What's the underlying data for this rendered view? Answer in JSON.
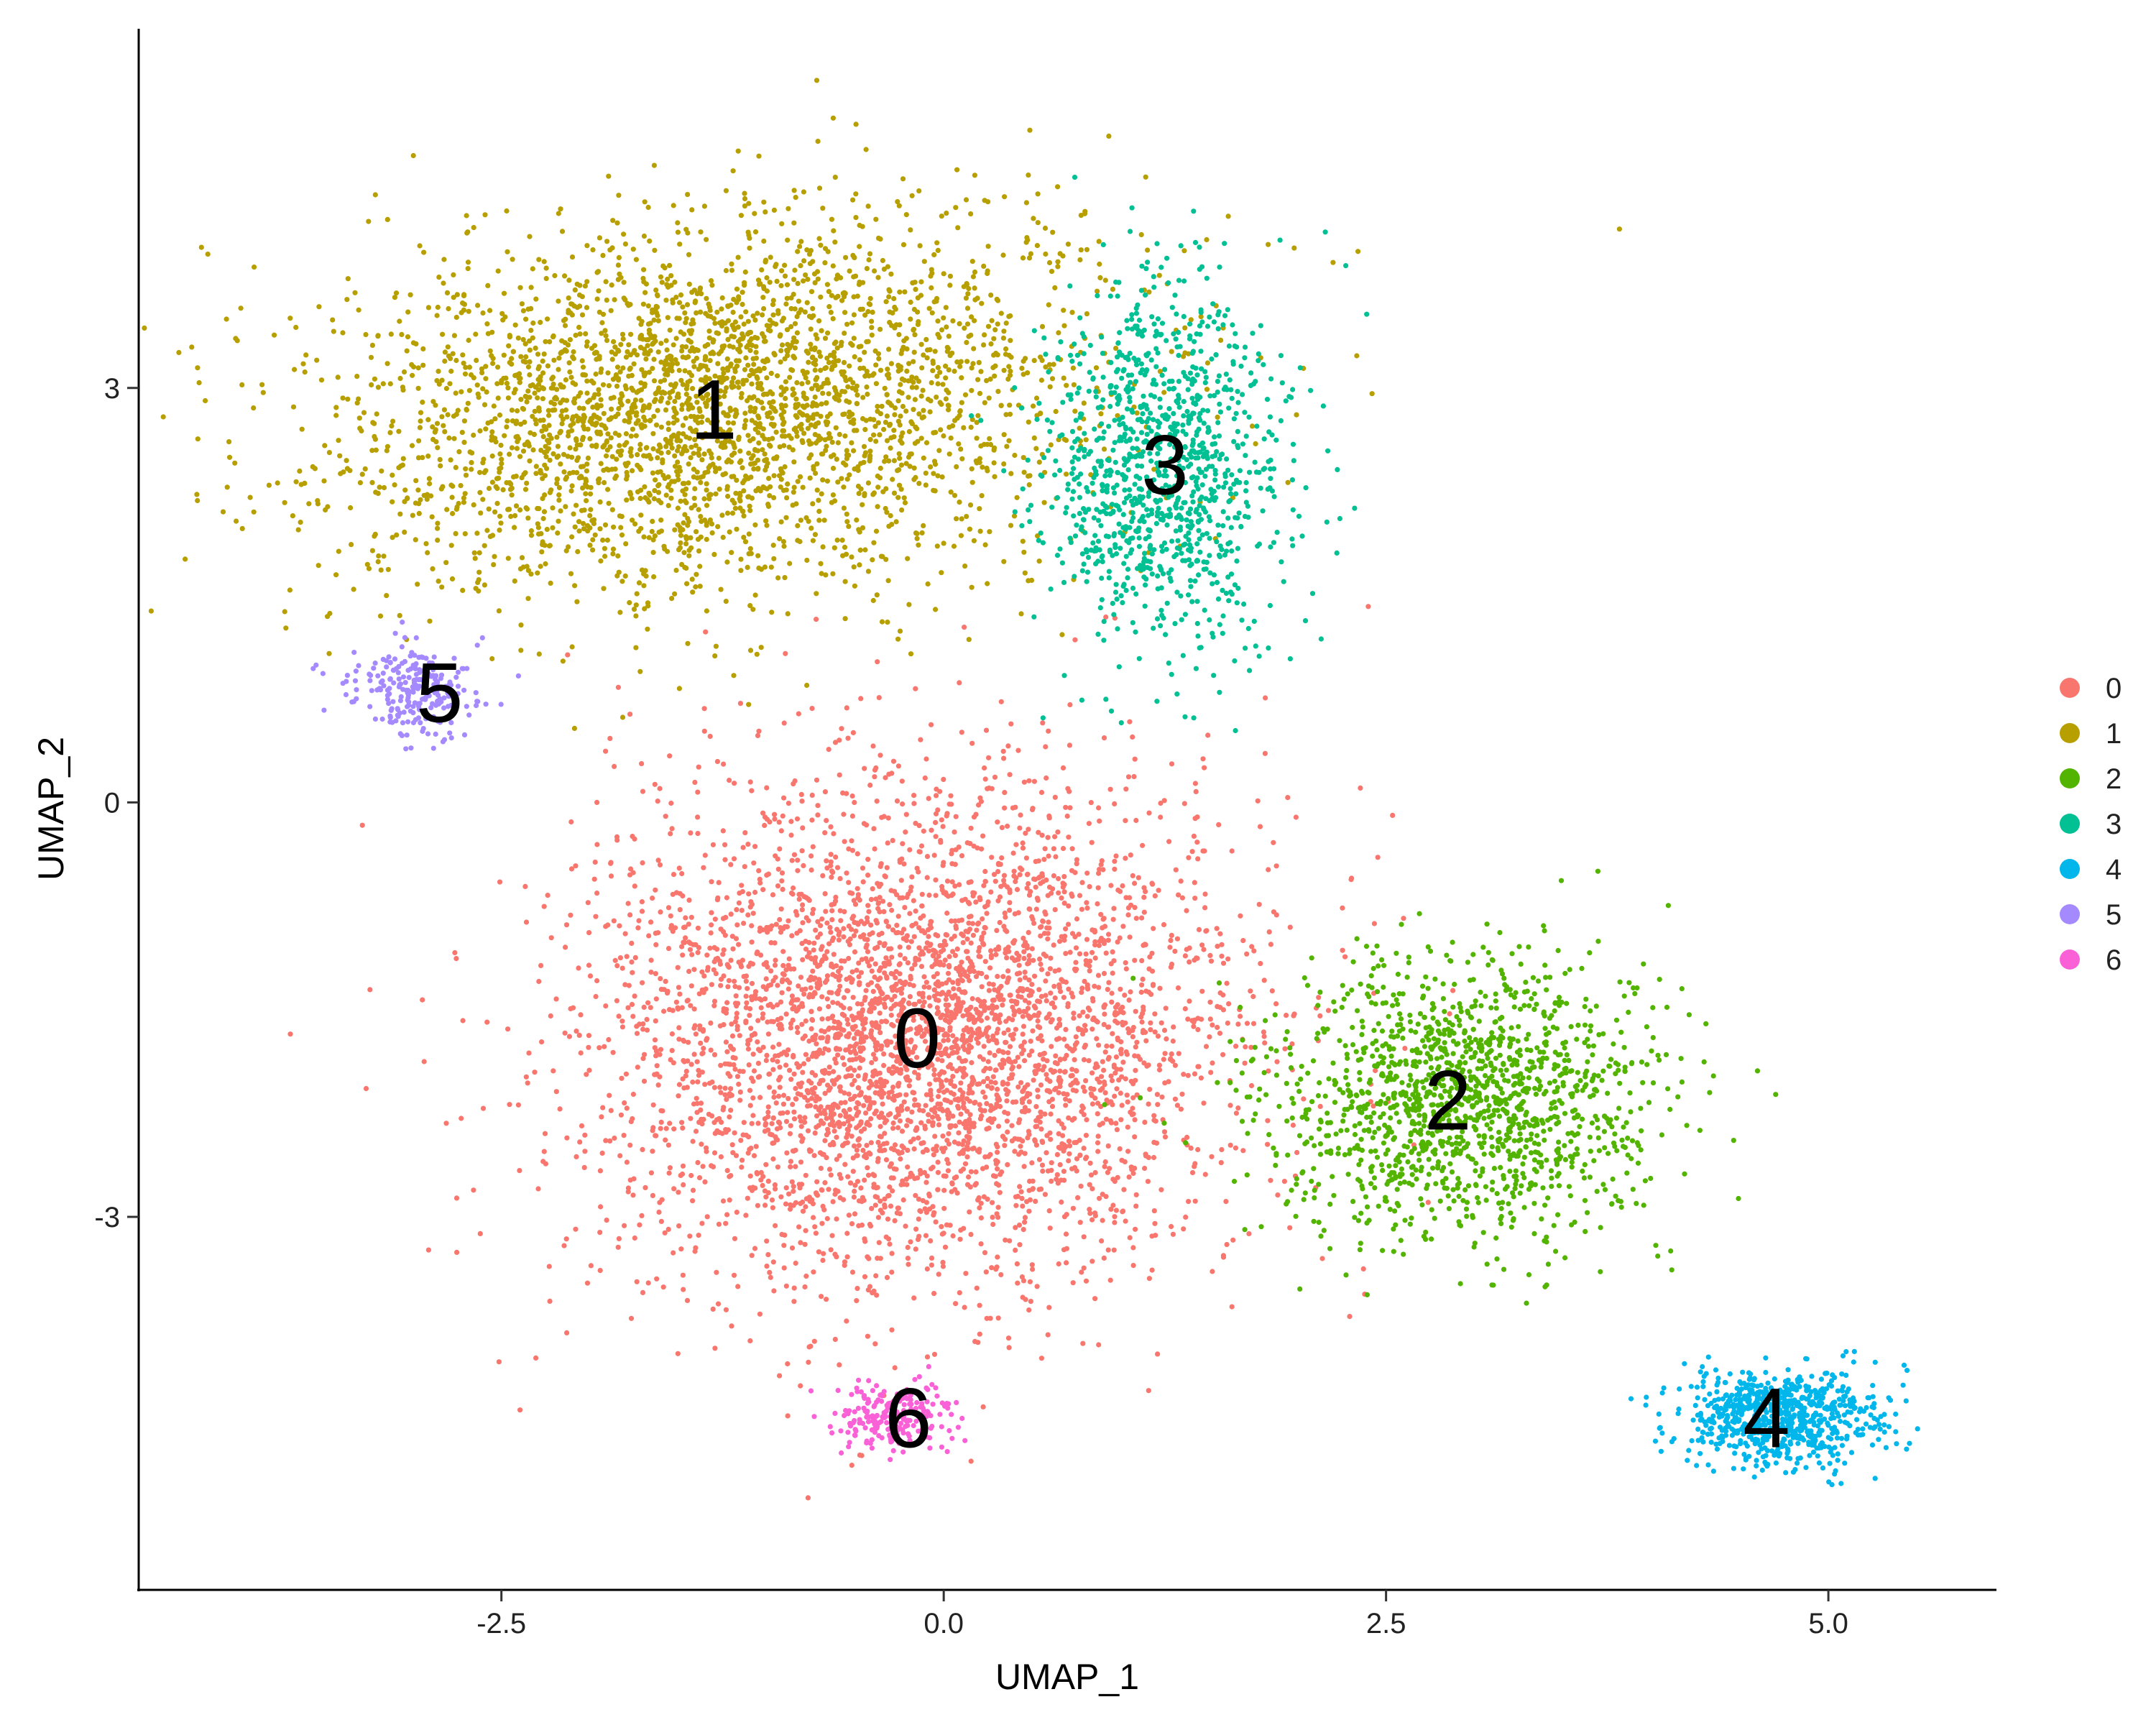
{
  "chart_data": {
    "type": "scatter",
    "title": "",
    "xlabel": "UMAP_1",
    "ylabel": "UMAP_2",
    "xlim": [
      -4.55,
      5.95
    ],
    "ylim": [
      -5.7,
      5.6
    ],
    "x_ticks": [
      {
        "value": -2.5,
        "label": "-2.5"
      },
      {
        "value": 0,
        "label": "0.0"
      },
      {
        "value": 2.5,
        "label": "2.5"
      },
      {
        "value": 5,
        "label": "5.0"
      }
    ],
    "y_ticks": [
      {
        "value": 3,
        "label": "3"
      },
      {
        "value": 0,
        "label": "0"
      },
      {
        "value": -3,
        "label": "-3"
      }
    ],
    "grid": false,
    "legend": {
      "placement": "right",
      "entries": [
        {
          "label": "0",
          "color": "#F8766D"
        },
        {
          "label": "1",
          "color": "#B79F00"
        },
        {
          "label": "2",
          "color": "#53B400"
        },
        {
          "label": "3",
          "color": "#00C094"
        },
        {
          "label": "4",
          "color": "#00B6EB"
        },
        {
          "label": "5",
          "color": "#A58AFF"
        },
        {
          "label": "6",
          "color": "#FB61D7"
        }
      ]
    },
    "clusters": [
      {
        "label": "0",
        "color": "#F8766D",
        "center": [
          -0.15,
          -1.7
        ],
        "spread": [
          1.45,
          1.45
        ],
        "angle": -40,
        "n": 4200
      },
      {
        "label": "1",
        "color": "#B79F00",
        "center": [
          -1.3,
          2.85
        ],
        "spread": [
          1.75,
          1.05
        ],
        "angle": 10,
        "n": 3200
      },
      {
        "label": "2",
        "color": "#53B400",
        "center": [
          2.95,
          -2.15
        ],
        "spread": [
          0.85,
          0.8
        ],
        "angle": 15,
        "n": 1500
      },
      {
        "label": "3",
        "color": "#00C094",
        "center": [
          1.25,
          2.45
        ],
        "spread": [
          0.55,
          1.05
        ],
        "angle": 0,
        "n": 1100
      },
      {
        "label": "4",
        "color": "#00B6EB",
        "center": [
          4.7,
          -4.45
        ],
        "spread": [
          0.45,
          0.28
        ],
        "angle": 0,
        "n": 750
      },
      {
        "label": "5",
        "color": "#A58AFF",
        "center": [
          -3.0,
          0.8
        ],
        "spread": [
          0.3,
          0.25
        ],
        "angle": 0,
        "n": 240
      },
      {
        "label": "6",
        "color": "#FB61D7",
        "center": [
          -0.3,
          -4.45
        ],
        "spread": [
          0.28,
          0.2
        ],
        "angle": 0,
        "n": 230
      }
    ],
    "cluster_labels": [
      {
        "text": "0",
        "x": -0.15,
        "y": -1.7
      },
      {
        "text": "1",
        "x": -1.3,
        "y": 2.85
      },
      {
        "text": "2",
        "x": 2.85,
        "y": -2.15
      },
      {
        "text": "3",
        "x": 1.25,
        "y": 2.45
      },
      {
        "text": "4",
        "x": 4.65,
        "y": -4.45
      },
      {
        "text": "5",
        "x": -2.85,
        "y": 0.8
      },
      {
        "text": "6",
        "x": -0.2,
        "y": -4.45
      }
    ]
  }
}
